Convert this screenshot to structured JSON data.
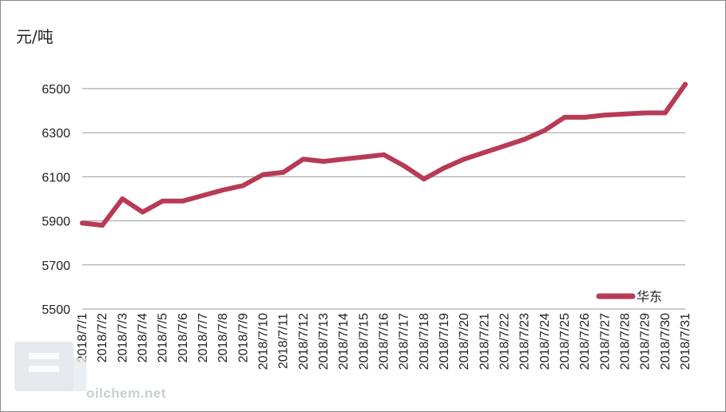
{
  "chart_data": {
    "type": "line",
    "ylabel": "元/吨",
    "ylim": [
      5500,
      6500
    ],
    "yticks": [
      5500,
      5700,
      5900,
      6100,
      6300,
      6500
    ],
    "grid": true,
    "legend_position": "bottom-right",
    "categories": [
      "2018/7/1",
      "2018/7/2",
      "2018/7/3",
      "2018/7/4",
      "2018/7/5",
      "2018/7/6",
      "2018/7/7",
      "2018/7/8",
      "2018/7/9",
      "2018/7/10",
      "2018/7/11",
      "2018/7/12",
      "2018/7/13",
      "2018/7/14",
      "2018/7/15",
      "2018/7/16",
      "2018/7/17",
      "2018/7/18",
      "2018/7/19",
      "2018/7/20",
      "2018/7/21",
      "2018/7/22",
      "2018/7/23",
      "2018/7/24",
      "2018/7/25",
      "2018/7/26",
      "2018/7/27",
      "2018/7/28",
      "2018/7/29",
      "2018/7/30",
      "2018/7/31"
    ],
    "series": [
      {
        "name": "华东",
        "color": "#b83a56",
        "values": [
          5890,
          5880,
          6000,
          5940,
          5990,
          5990,
          6015,
          6040,
          6060,
          6110,
          6120,
          6180,
          6170,
          6180,
          6190,
          6200,
          6150,
          6090,
          6140,
          6180,
          6210,
          6240,
          6270,
          6310,
          6370,
          6370,
          6380,
          6385,
          6390,
          6390,
          6520
        ]
      }
    ]
  },
  "watermark": {
    "text": "oilchem.net"
  }
}
